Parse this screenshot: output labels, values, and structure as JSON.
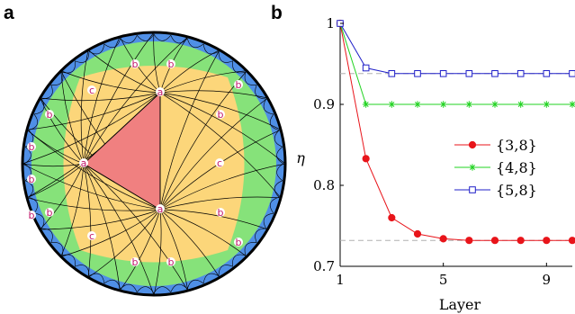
{
  "panel_labels": {
    "a": "a",
    "b": "b"
  },
  "tiling": {
    "vertex_labels": [
      "a",
      "b",
      "c"
    ],
    "colors": {
      "center_triangle": "#f08080",
      "layer2": "#fcd67a",
      "layer3": "#86e27a",
      "layer4": "#4f8fe6",
      "edge": "#000000",
      "label": "#c2186b"
    }
  },
  "chart_data": {
    "type": "line",
    "xlabel": "Layer",
    "ylabel": "η",
    "xlim": [
      1,
      10
    ],
    "ylim": [
      0.7,
      1.0
    ],
    "xticks": [
      1,
      5,
      9
    ],
    "yticks": [
      0.7,
      0.8,
      0.9,
      1
    ],
    "ytick_labels": [
      "0.7",
      "0.8",
      "0.9",
      "1"
    ],
    "grid": false,
    "legend_position": "right-middle",
    "series": [
      {
        "name": "{3,8}",
        "color": "#e8141a",
        "marker": "filled-circle",
        "x": [
          1,
          2,
          3,
          4,
          5,
          6,
          7,
          8,
          9,
          10
        ],
        "y": [
          1.0,
          0.833,
          0.76,
          0.74,
          0.734,
          0.732,
          0.732,
          0.732,
          0.732,
          0.732
        ]
      },
      {
        "name": "{4,8}",
        "color": "#22d322",
        "marker": "asterisk",
        "x": [
          1,
          2,
          3,
          4,
          5,
          6,
          7,
          8,
          9,
          10
        ],
        "y": [
          1.0,
          0.9,
          0.9,
          0.9,
          0.9,
          0.9,
          0.9,
          0.9,
          0.9,
          0.9
        ]
      },
      {
        "name": "{5,8}",
        "color": "#1f1fc8",
        "marker": "open-square",
        "x": [
          1,
          2,
          3,
          4,
          5,
          6,
          7,
          8,
          9,
          10
        ],
        "y": [
          1.0,
          0.945,
          0.938,
          0.938,
          0.938,
          0.938,
          0.938,
          0.938,
          0.938,
          0.938
        ]
      }
    ],
    "reference_lines": [
      0.938,
      0.732
    ]
  }
}
